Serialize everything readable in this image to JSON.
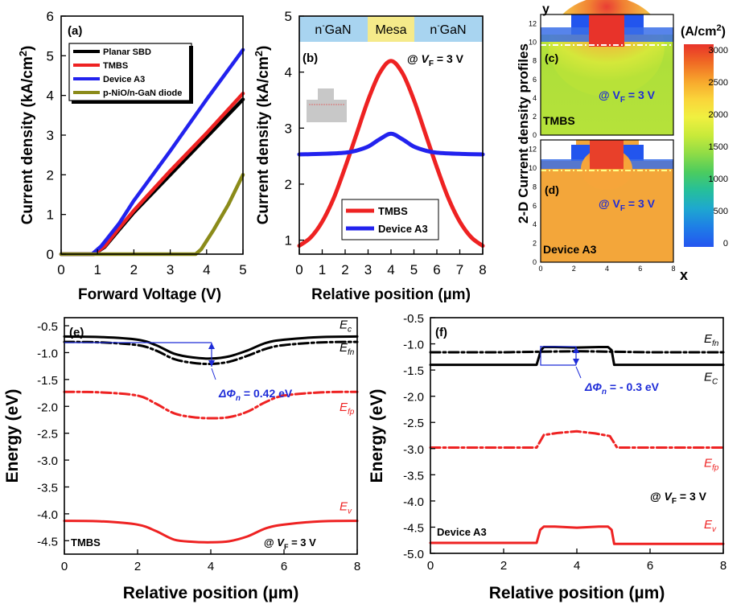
{
  "chart_data": [
    {
      "panel": "a",
      "type": "line",
      "panel_label": "(a)",
      "xlabel": "Forward Voltage (V)",
      "ylabel": "Current density (kA/cm",
      "ylabel_sup": "2",
      "ylabel_close": ")",
      "xlim": [
        0,
        5
      ],
      "ylim": [
        0,
        6
      ],
      "xticks": [
        "0",
        "1",
        "2",
        "3",
        "4",
        "5"
      ],
      "yticks": [
        "0",
        "1",
        "2",
        "3",
        "4",
        "5",
        "6"
      ],
      "legend_position": "top-left",
      "series": [
        {
          "name": "Planar SBD",
          "color": "#000000",
          "x": [
            0,
            0.9,
            1.2,
            1.6,
            2,
            3,
            4,
            5
          ],
          "y": [
            0,
            0,
            0.18,
            0.62,
            1.05,
            2.0,
            2.95,
            3.9
          ]
        },
        {
          "name": "TMBS",
          "color": "#ee2222",
          "x": [
            0,
            0.9,
            1.2,
            1.6,
            2,
            3,
            4,
            5
          ],
          "y": [
            0,
            0,
            0.2,
            0.66,
            1.1,
            2.1,
            3.05,
            4.05
          ]
        },
        {
          "name": "Device A3",
          "color": "#2222ee",
          "x": [
            0,
            0.85,
            1.1,
            1.6,
            2,
            3,
            4,
            5
          ],
          "y": [
            0,
            0,
            0.2,
            0.78,
            1.35,
            2.6,
            3.9,
            5.15
          ]
        },
        {
          "name": "p-NiO/n-GaN diode",
          "color": "#8b8b1a",
          "x": [
            0,
            3.7,
            3.85,
            4.2,
            4.6,
            5
          ],
          "y": [
            0,
            0,
            0.12,
            0.62,
            1.25,
            2.0
          ]
        }
      ]
    },
    {
      "panel": "b",
      "type": "line",
      "panel_label": "(b)",
      "annotation": "@ ",
      "annotation_var": "V",
      "annotation_sub": "F",
      "annotation_val": " = 3 V",
      "header_left": "n",
      "header_left_tail": "GaN",
      "header_mid": "Mesa",
      "header_right": "n",
      "header_right_tail": "GaN",
      "header_sup": "-",
      "xlabel": "Relative position (µm)",
      "ylabel": "Current density (kA/cm",
      "ylabel_sup": "2",
      "ylabel_close": ")",
      "xlim": [
        0,
        8
      ],
      "ylim": [
        0.75,
        5
      ],
      "xticks": [
        "0",
        "1",
        "2",
        "3",
        "4",
        "5",
        "6",
        "7",
        "8"
      ],
      "yticks": [
        "1",
        "2",
        "3",
        "4",
        "5"
      ],
      "legend_position": "lower-middle",
      "series": [
        {
          "name": "TMBS",
          "color": "#ee2222",
          "x": [
            0,
            0.5,
            1,
            1.5,
            2,
            2.5,
            3,
            3.5,
            4,
            4.5,
            5,
            5.5,
            6,
            6.5,
            7,
            7.5,
            8
          ],
          "y": [
            0.9,
            1.05,
            1.33,
            1.75,
            2.3,
            2.9,
            3.5,
            3.98,
            4.2,
            3.98,
            3.5,
            2.9,
            2.3,
            1.75,
            1.33,
            1.05,
            0.9
          ]
        },
        {
          "name": "Device A3",
          "color": "#2222ee",
          "x": [
            0,
            1,
            2,
            2.5,
            3,
            3.5,
            4,
            4.5,
            5,
            5.5,
            6,
            7,
            8
          ],
          "y": [
            2.53,
            2.54,
            2.56,
            2.6,
            2.67,
            2.8,
            2.9,
            2.8,
            2.67,
            2.6,
            2.56,
            2.54,
            2.53
          ]
        }
      ]
    },
    {
      "panel": "c-d",
      "type": "heatmap",
      "title": "2-D Current density profiles",
      "colorbar_title": "(A/cm",
      "colorbar_sup": "2",
      "colorbar_close": ")",
      "colorbar_ticks": [
        "3000",
        "2500",
        "2000",
        "1500",
        "1000",
        "500",
        "0"
      ],
      "colorbar_colors": [
        "#e8332a",
        "#f06a24",
        "#f7a52c",
        "#fad43a",
        "#f0f040",
        "#c8ea3a",
        "#8fdc46",
        "#4ccc5e",
        "#26bf9a",
        "#1ea8cf",
        "#1e7fe6",
        "#2455f0"
      ],
      "x_axis_label": "x",
      "y_axis_label": "y",
      "xticks": [
        "0",
        "2",
        "4",
        "6",
        "8"
      ],
      "yticks": [
        "0",
        "2",
        "4",
        "6",
        "8",
        "10",
        "12"
      ],
      "maps": [
        {
          "panel_label": "(c)",
          "device": "TMBS",
          "annotation": "@ V",
          "annotation_sub": "F",
          "annotation_val": " = 3 V"
        },
        {
          "panel_label": "(d)",
          "device": "Device A3",
          "annotation": "@ V",
          "annotation_sub": "F",
          "annotation_val": " = 3 V"
        }
      ]
    },
    {
      "panel": "e",
      "type": "line",
      "panel_label": "(e)",
      "device": "TMBS",
      "annotation": "@ ",
      "annotation_var": "V",
      "annotation_sub": "F",
      "annotation_val": " = 3 V",
      "delta_label": "ΔΦ",
      "delta_sub": "n",
      "delta_val": " = 0.42 eV",
      "xlabel": "Relative position (µm)",
      "ylabel": "Energy (eV)",
      "xlim": [
        0,
        8
      ],
      "ylim": [
        -4.75,
        -0.35
      ],
      "xticks": [
        "0",
        "2",
        "4",
        "6",
        "8"
      ],
      "yticks": [
        "-0.5",
        "-1.0",
        "-1.5",
        "-2.0",
        "-2.5",
        "-3.0",
        "-3.5",
        "-4.0",
        "-4.5"
      ],
      "series": [
        {
          "name": "E",
          "sub": "c",
          "color": "#000000",
          "style": "solid",
          "x": [
            0,
            1,
            2,
            2.5,
            3,
            3.5,
            4,
            4.5,
            5,
            5.5,
            6,
            7,
            8
          ],
          "y": [
            -0.7,
            -0.71,
            -0.76,
            -0.86,
            -1.02,
            -1.09,
            -1.11,
            -1.07,
            -0.96,
            -0.82,
            -0.76,
            -0.71,
            -0.7
          ]
        },
        {
          "name": "E",
          "sub": "fn",
          "color": "#000000",
          "style": "dashdot",
          "x": [
            0,
            1,
            2,
            2.5,
            3,
            3.5,
            4,
            4.5,
            5,
            5.5,
            6,
            7,
            8
          ],
          "y": [
            -0.8,
            -0.81,
            -0.86,
            -0.96,
            -1.12,
            -1.19,
            -1.21,
            -1.17,
            -1.06,
            -0.93,
            -0.86,
            -0.81,
            -0.8
          ]
        },
        {
          "name": "E",
          "sub": "fp",
          "color": "#ee2222",
          "style": "dashdot",
          "x": [
            0,
            1,
            2,
            2.5,
            3,
            3.5,
            4,
            4.5,
            5,
            5.5,
            6,
            7,
            8
          ],
          "y": [
            -1.73,
            -1.74,
            -1.8,
            -1.95,
            -2.13,
            -2.2,
            -2.22,
            -2.2,
            -2.1,
            -1.92,
            -1.8,
            -1.74,
            -1.73
          ]
        },
        {
          "name": "E",
          "sub": "v",
          "color": "#ee2222",
          "style": "solid",
          "x": [
            0,
            1,
            2,
            2.5,
            3,
            3.5,
            4,
            4.5,
            5,
            5.5,
            6,
            7,
            8
          ],
          "y": [
            -4.13,
            -4.14,
            -4.2,
            -4.32,
            -4.48,
            -4.52,
            -4.53,
            -4.51,
            -4.42,
            -4.27,
            -4.2,
            -4.14,
            -4.13
          ]
        }
      ]
    },
    {
      "panel": "f",
      "type": "line",
      "panel_label": "(f)",
      "device": "Device A3",
      "annotation": "@ ",
      "annotation_var": "V",
      "annotation_sub": "F",
      "annotation_val": " = 3 V",
      "delta_label": "ΔΦ",
      "delta_sub": "n",
      "delta_val": " = - 0.3 eV",
      "xlabel": "Relative position (µm)",
      "ylabel": "Energy (eV)",
      "xlim": [
        0,
        8
      ],
      "ylim": [
        -5.0,
        -0.5
      ],
      "xticks": [
        "0",
        "2",
        "4",
        "6",
        "8"
      ],
      "yticks": [
        "-0.5",
        "-1.0",
        "-1.5",
        "-2.0",
        "-2.5",
        "-3.0",
        "-3.5",
        "-4.0",
        "-4.5",
        "-5.0"
      ],
      "series": [
        {
          "name": "E",
          "sub": "fn",
          "color": "#000000",
          "style": "dashdot",
          "x": [
            0,
            2,
            3,
            4,
            5,
            6,
            8
          ],
          "y": [
            -1.16,
            -1.16,
            -1.15,
            -1.14,
            -1.15,
            -1.16,
            -1.16
          ]
        },
        {
          "name": "E",
          "sub": "C",
          "color": "#000000",
          "style": "solid",
          "x": [
            0,
            2.9,
            3.02,
            3.1,
            3.4,
            4,
            4.6,
            4.85,
            4.95,
            5.02,
            8
          ],
          "y": [
            -1.4,
            -1.4,
            -1.12,
            -1.06,
            -1.06,
            -1.07,
            -1.06,
            -1.06,
            -1.12,
            -1.4,
            -1.4
          ]
        },
        {
          "name": "E",
          "sub": "fp",
          "color": "#ee2222",
          "style": "dashdot",
          "x": [
            0,
            2.9,
            3.1,
            3.5,
            4,
            4.5,
            4.9,
            5.1,
            8
          ],
          "y": [
            -2.98,
            -2.98,
            -2.74,
            -2.7,
            -2.67,
            -2.71,
            -2.76,
            -2.98,
            -2.98
          ]
        },
        {
          "name": "E",
          "sub": "v",
          "color": "#ee2222",
          "style": "solid",
          "x": [
            0,
            2.9,
            3.0,
            3.1,
            3.4,
            4,
            4.6,
            4.85,
            4.95,
            5.02,
            8
          ],
          "y": [
            -4.8,
            -4.8,
            -4.55,
            -4.49,
            -4.49,
            -4.51,
            -4.49,
            -4.49,
            -4.55,
            -4.82,
            -4.82
          ]
        }
      ]
    }
  ]
}
